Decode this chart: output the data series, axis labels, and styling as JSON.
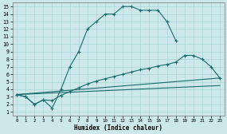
{
  "xlabel": "Humidex (Indice chaleur)",
  "bg_color": "#cce8ea",
  "grid_color": "#aad4d8",
  "line_color": "#1a6b6b",
  "xlim": [
    -0.5,
    23.5
  ],
  "ylim": [
    0.5,
    15.5
  ],
  "xticks": [
    0,
    1,
    2,
    3,
    4,
    5,
    6,
    7,
    8,
    9,
    10,
    11,
    12,
    13,
    14,
    15,
    16,
    17,
    18,
    19,
    20,
    21,
    22,
    23
  ],
  "yticks": [
    1,
    2,
    3,
    4,
    5,
    6,
    7,
    8,
    9,
    10,
    11,
    12,
    13,
    14,
    15
  ],
  "curve1_x": [
    0,
    1,
    2,
    3,
    4,
    5,
    6,
    7,
    8,
    9,
    10,
    11,
    12,
    13,
    14,
    15,
    16,
    17,
    18,
    19,
    20,
    21,
    22
  ],
  "curve1_y": [
    3.3,
    3.0,
    2.0,
    2.6,
    1.5,
    4.0,
    7.0,
    9.0,
    12.0,
    13.0,
    14.0,
    14.0,
    15.0,
    15.0,
    14.5,
    14.5,
    14.5,
    13.0,
    10.5,
    null,
    null,
    null,
    null
  ],
  "curve2_x": [
    0,
    1,
    2,
    3,
    4,
    5,
    6,
    7,
    8,
    9,
    10,
    11,
    12,
    13,
    14,
    15,
    16,
    17,
    18,
    19,
    20,
    21,
    22,
    23
  ],
  "curve2_y": [
    3.3,
    3.0,
    2.0,
    2.6,
    2.5,
    3.2,
    3.7,
    4.2,
    4.7,
    5.1,
    5.4,
    5.7,
    6.0,
    6.3,
    6.6,
    6.8,
    7.1,
    7.3,
    7.6,
    8.5,
    8.5,
    8.0,
    7.0,
    5.5
  ],
  "curve3_x": [
    0,
    23
  ],
  "curve3_y": [
    3.3,
    5.5
  ],
  "curve4_x": [
    0,
    23
  ],
  "curve4_y": [
    3.3,
    4.5
  ]
}
